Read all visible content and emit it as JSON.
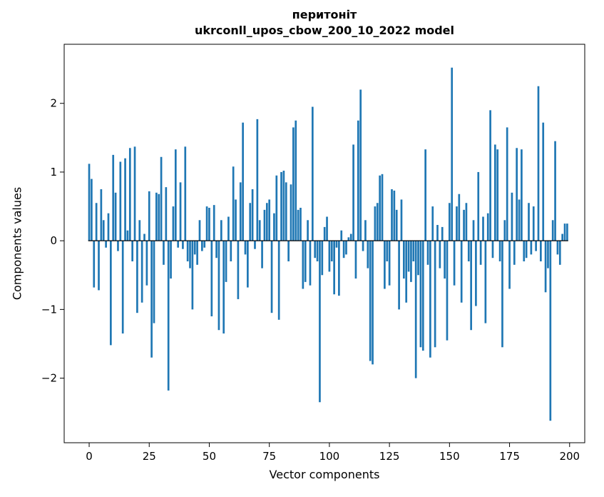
{
  "chart_data": {
    "type": "bar",
    "title": "перитоніт",
    "subtitle": "ukrconll_upos_cbow_200_10_2022 model",
    "xlabel": "Vector components",
    "ylabel": "Components values",
    "bar_color": "#1f77b4",
    "axis_color": "#000000",
    "x_ticks": [
      0,
      25,
      50,
      75,
      100,
      125,
      150,
      175,
      200
    ],
    "y_ticks": [
      -2,
      -1,
      0,
      1,
      2
    ],
    "xlim": [
      -10.4,
      206.3
    ],
    "ylim": [
      -2.94,
      2.86
    ],
    "bar_width": 0.8,
    "grid": false,
    "legend": "none",
    "values": [
      1.12,
      0.9,
      -0.68,
      0.55,
      -0.72,
      0.75,
      0.3,
      -0.1,
      0.4,
      -1.52,
      1.25,
      0.7,
      -0.15,
      1.15,
      -1.35,
      1.2,
      0.15,
      1.35,
      -0.3,
      1.37,
      -1.05,
      0.3,
      -0.9,
      0.1,
      -0.65,
      0.72,
      -1.7,
      -1.2,
      0.7,
      0.68,
      1.22,
      -0.35,
      0.78,
      -2.18,
      -0.55,
      0.5,
      1.33,
      -0.1,
      0.85,
      -0.12,
      1.37,
      -0.3,
      -0.4,
      -1.0,
      -0.2,
      -0.35,
      0.3,
      -0.15,
      -0.1,
      0.5,
      0.48,
      -1.1,
      0.52,
      -0.25,
      -1.3,
      0.3,
      -1.35,
      -0.6,
      0.35,
      -0.3,
      1.08,
      0.6,
      -0.85,
      0.85,
      1.72,
      -0.2,
      -0.68,
      0.55,
      0.75,
      -0.12,
      1.77,
      0.3,
      -0.4,
      0.45,
      0.55,
      0.6,
      -1.05,
      0.4,
      0.95,
      -1.15,
      1.0,
      1.02,
      0.85,
      -0.3,
      0.82,
      1.65,
      1.75,
      0.45,
      0.48,
      -0.7,
      -0.6,
      0.3,
      -0.65,
      1.95,
      -0.25,
      -0.3,
      -2.35,
      -0.5,
      0.2,
      0.35,
      -0.45,
      -0.3,
      -0.78,
      -0.1,
      -0.8,
      0.15,
      -0.25,
      -0.2,
      0.05,
      0.1,
      1.4,
      -0.55,
      1.75,
      2.2,
      -0.15,
      0.3,
      -0.4,
      -1.75,
      -1.8,
      0.5,
      0.55,
      0.95,
      0.97,
      -0.7,
      -0.3,
      -0.65,
      0.75,
      0.73,
      0.45,
      -1.0,
      0.6,
      -0.55,
      -0.9,
      -0.45,
      -0.6,
      -0.3,
      -2.0,
      -0.5,
      -1.55,
      -1.6,
      1.33,
      -0.35,
      -1.7,
      0.5,
      -1.55,
      0.23,
      -0.4,
      0.2,
      -0.55,
      -1.45,
      0.55,
      2.52,
      -0.65,
      0.5,
      0.68,
      -0.9,
      0.45,
      0.55,
      -0.3,
      -1.3,
      0.3,
      -0.95,
      1.0,
      -0.35,
      0.35,
      -1.2,
      0.4,
      1.9,
      -0.25,
      1.4,
      1.33,
      -0.3,
      -1.55,
      0.3,
      1.65,
      -0.7,
      0.7,
      -0.35,
      1.35,
      0.6,
      1.33,
      -0.3,
      -0.25,
      0.55,
      -0.2,
      0.5,
      -0.15,
      2.25,
      -0.3,
      1.72,
      -0.75,
      -0.4,
      -2.62,
      0.3,
      1.45,
      -0.2,
      -0.35,
      0.1,
      0.25,
      0.25
    ]
  }
}
